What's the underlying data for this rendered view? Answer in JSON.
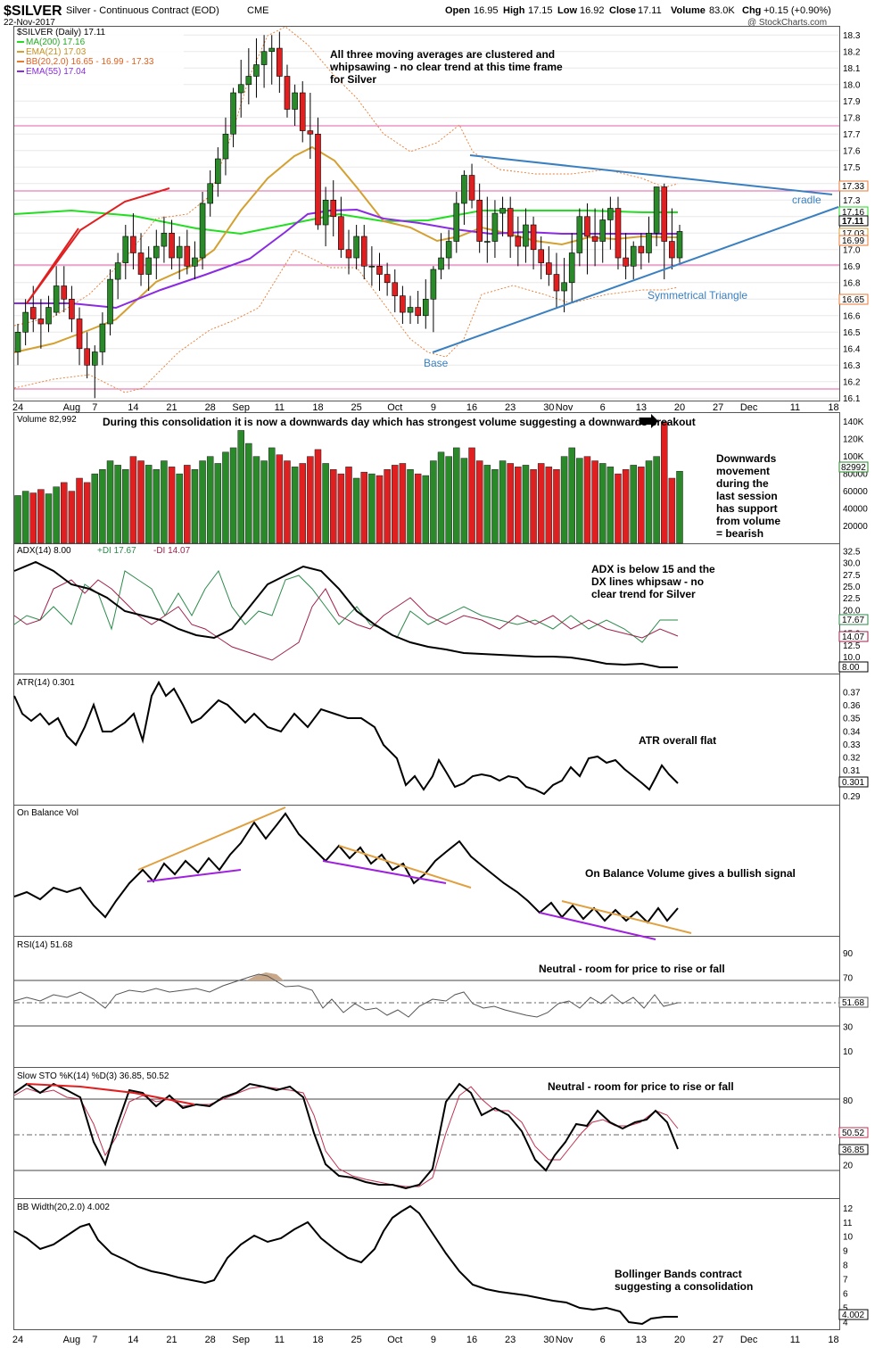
{
  "header": {
    "symbol": "$SILVER",
    "name": "Silver - Continuous Contract (EOD)",
    "exchange": "CME",
    "date": "22-Nov-2017",
    "open_label": "Open",
    "open": "16.95",
    "high_label": "High",
    "high": "17.15",
    "low_label": "Low",
    "low": "16.92",
    "close_label": "Close",
    "close": "17.11",
    "volume_label": "Volume",
    "volume": "83.0K",
    "chg_label": "Chg",
    "chg": "+0.15 (+0.90%)",
    "watermark": "@ StockCharts.com"
  },
  "colors": {
    "up": "#2a8a2a",
    "down": "#e02020",
    "ma200": "#22dd22",
    "ema21": "#d4a030",
    "bb": "#e87a30",
    "ema55": "#8a2be2",
    "trend": "#3a80c0",
    "pink": "#e040a0"
  },
  "x_axis": {
    "labels": [
      "24",
      "Aug",
      "7",
      "14",
      "21",
      "28",
      "Sep",
      "11",
      "18",
      "25",
      "Oct",
      "9",
      "16",
      "23",
      "30",
      "Nov",
      "6",
      "13",
      "20",
      "27",
      "Dec",
      "11",
      "18"
    ]
  },
  "price_panel": {
    "legend": [
      "$SILVER (Daily) 17.11",
      "MA(200) 17.16",
      "EMA(21) 17.03",
      "BB(20,2.0) 16.65 - 16.99 - 17.33",
      "EMA(55) 17.04"
    ],
    "y_ticks": [
      "18.3",
      "18.2",
      "18.1",
      "18.0",
      "17.9",
      "17.8",
      "17.7",
      "17.6",
      "17.5",
      "17.4",
      "17.3",
      "17.2",
      "17.1",
      "17.0",
      "16.9",
      "16.8",
      "16.7",
      "16.6",
      "16.5",
      "16.4",
      "16.3",
      "16.2",
      "16.1"
    ],
    "right_tags": [
      "17.33",
      "17.16",
      "17.11",
      "17.03",
      "16.99",
      "16.65"
    ],
    "annotations": {
      "moving_averages": "All three moving averages are clustered and whipsawing -  no clear trend at this time frame for Silver",
      "cradle": "cradle",
      "triangle": "Symmetrical Triangle",
      "base": "Base"
    }
  },
  "volume_panel": {
    "legend": "Volume 82,992",
    "y_ticks": [
      "140K",
      "120K",
      "100K",
      "80000",
      "60000",
      "40000",
      "20000"
    ],
    "last_tag": "82992",
    "annotation_top": "During this consolidation it is now a downwards day which has strongest volume suggesting a downwards breakout",
    "annotation_side": "Downwards movement during the last session has support from volume = bearish"
  },
  "adx_panel": {
    "legend_a": "ADX(14) 8.00",
    "legend_b": "+DI 17.67",
    "legend_c": "-DI 14.07",
    "y_ticks": [
      "32.5",
      "30.0",
      "27.5",
      "25.0",
      "22.5",
      "20.0",
      "17.5",
      "15.0",
      "12.5",
      "10.0",
      "7.5"
    ],
    "tags": [
      "17.67",
      "14.07",
      "8.00"
    ],
    "annotation": "ADX is below 15 and the DX lines whipsaw - no clear trend for Silver"
  },
  "atr_panel": {
    "legend": "ATR(14) 0.301",
    "y_ticks": [
      "0.37",
      "0.36",
      "0.35",
      "0.34",
      "0.33",
      "0.32",
      "0.31",
      "0.30",
      "0.29"
    ],
    "tag": "0.301",
    "annotation": "ATR overall flat"
  },
  "obv_panel": {
    "legend": "On Balance Vol",
    "annotation": "On Balance Volume gives a bullish signal"
  },
  "rsi_panel": {
    "legend": "RSI(14) 51.68",
    "y_ticks": [
      "90",
      "70",
      "50",
      "30",
      "10"
    ],
    "tag": "51.68",
    "annotation": "Neutral - room for price to rise or fall"
  },
  "sto_panel": {
    "legend": "Slow STO %K(14) %D(3) 36.85, 50.52",
    "y_ticks": [
      "80",
      "50",
      "20"
    ],
    "tags": [
      "50.52",
      "36.85"
    ],
    "annotation": "Neutral - room for price to rise or fall"
  },
  "bbw_panel": {
    "legend": "BB Width(20,2.0) 4.002",
    "y_ticks": [
      "12",
      "11",
      "10",
      "9",
      "8",
      "7",
      "6",
      "5",
      "4"
    ],
    "tag": "4.002",
    "annotation": "Bollinger Bands contract suggesting a consolidation"
  },
  "chart_data": {
    "type": "candlestick",
    "x": [
      "Jul-24",
      "Jul-25",
      "Jul-26",
      "Jul-27",
      "Jul-28",
      "Jul-31",
      "Aug-1",
      "Aug-2",
      "Aug-3",
      "Aug-4",
      "Aug-7",
      "Aug-8",
      "Aug-9",
      "Aug-10",
      "Aug-11",
      "Aug-14",
      "Aug-15",
      "Aug-16",
      "Aug-17",
      "Aug-18",
      "Aug-21",
      "Aug-22",
      "Aug-23",
      "Aug-24",
      "Aug-25",
      "Aug-28",
      "Aug-29",
      "Aug-30",
      "Aug-31",
      "Sep-1",
      "Sep-5",
      "Sep-6",
      "Sep-7",
      "Sep-8",
      "Sep-11",
      "Sep-12",
      "Sep-13",
      "Sep-14",
      "Sep-15",
      "Sep-18",
      "Sep-19",
      "Sep-20",
      "Sep-21",
      "Sep-22",
      "Sep-25",
      "Sep-26",
      "Sep-27",
      "Sep-28",
      "Sep-29",
      "Oct-2",
      "Oct-3",
      "Oct-4",
      "Oct-5",
      "Oct-6",
      "Oct-9",
      "Oct-10",
      "Oct-11",
      "Oct-12",
      "Oct-13",
      "Oct-16",
      "Oct-17",
      "Oct-18",
      "Oct-19",
      "Oct-20",
      "Oct-23",
      "Oct-24",
      "Oct-25",
      "Oct-26",
      "Oct-27",
      "Oct-30",
      "Oct-31",
      "Nov-1",
      "Nov-2",
      "Nov-3",
      "Nov-6",
      "Nov-7",
      "Nov-8",
      "Nov-9",
      "Nov-10",
      "Nov-13",
      "Nov-14",
      "Nov-15",
      "Nov-16",
      "Nov-17",
      "Nov-20",
      "Nov-21",
      "Nov-22"
    ],
    "open": [
      16.38,
      16.5,
      16.65,
      16.58,
      16.55,
      16.62,
      16.78,
      16.7,
      16.58,
      16.4,
      16.3,
      16.38,
      16.55,
      16.82,
      16.92,
      17.08,
      16.98,
      16.85,
      16.95,
      17.02,
      17.1,
      16.95,
      17.02,
      16.9,
      16.95,
      17.28,
      17.4,
      17.55,
      17.7,
      17.95,
      18.0,
      18.05,
      18.12,
      18.2,
      18.22,
      18.05,
      17.85,
      17.95,
      17.72,
      17.7,
      17.15,
      17.3,
      17.2,
      17.0,
      16.95,
      17.08,
      16.9,
      16.9,
      16.85,
      16.8,
      16.72,
      16.62,
      16.65,
      16.6,
      16.7,
      16.88,
      16.95,
      17.05,
      17.28,
      17.45,
      17.3,
      17.05,
      17.05,
      17.22,
      17.25,
      17.08,
      17.02,
      17.15,
      17.0,
      16.92,
      16.85,
      16.75,
      16.8,
      16.98,
      17.2,
      17.08,
      17.05,
      17.18,
      17.25,
      16.95,
      16.9,
      17.02,
      16.98,
      17.1,
      17.38,
      17.05,
      16.95
    ],
    "high": [
      16.55,
      16.7,
      16.78,
      16.7,
      16.72,
      16.9,
      16.9,
      16.78,
      16.65,
      16.5,
      16.42,
      16.62,
      16.88,
      16.98,
      17.15,
      17.22,
      17.1,
      17.02,
      17.12,
      17.2,
      17.18,
      17.08,
      17.12,
      17.05,
      17.35,
      17.48,
      17.62,
      17.8,
      17.98,
      18.15,
      18.22,
      18.28,
      18.3,
      18.3,
      18.32,
      18.12,
      18.0,
      18.02,
      17.95,
      17.8,
      17.38,
      17.42,
      17.32,
      17.12,
      17.15,
      17.15,
      17.02,
      16.98,
      16.92,
      16.88,
      16.78,
      16.72,
      16.75,
      16.82,
      16.9,
      17.1,
      17.12,
      17.35,
      17.48,
      17.52,
      17.4,
      17.32,
      17.3,
      17.32,
      17.32,
      17.2,
      17.25,
      17.2,
      17.08,
      17.02,
      16.98,
      16.95,
      17.1,
      17.25,
      17.28,
      17.25,
      17.25,
      17.32,
      17.32,
      17.1,
      17.05,
      17.1,
      17.2,
      17.38,
      17.4,
      17.25,
      17.15
    ],
    "low": [
      16.3,
      16.42,
      16.5,
      16.4,
      16.5,
      16.6,
      16.62,
      16.5,
      16.3,
      16.22,
      16.1,
      16.3,
      16.48,
      16.7,
      16.82,
      16.88,
      16.78,
      16.75,
      16.82,
      16.92,
      16.88,
      16.82,
      16.85,
      16.82,
      16.88,
      17.2,
      17.32,
      17.45,
      17.62,
      17.8,
      17.88,
      17.92,
      17.98,
      18.0,
      17.95,
      17.8,
      17.75,
      17.65,
      17.55,
      17.12,
      17.02,
      17.08,
      16.95,
      16.85,
      16.88,
      16.82,
      16.78,
      16.75,
      16.72,
      16.62,
      16.55,
      16.55,
      16.55,
      16.52,
      16.5,
      16.82,
      16.88,
      16.98,
      17.15,
      17.25,
      16.98,
      16.92,
      16.95,
      17.08,
      16.95,
      16.9,
      16.92,
      16.88,
      16.82,
      16.78,
      16.65,
      16.62,
      16.68,
      16.9,
      16.85,
      16.9,
      16.92,
      17.0,
      16.88,
      16.82,
      16.82,
      16.88,
      16.92,
      17.02,
      16.82,
      16.88,
      16.92
    ],
    "close": [
      16.5,
      16.62,
      16.58,
      16.55,
      16.65,
      16.78,
      16.7,
      16.58,
      16.4,
      16.3,
      16.38,
      16.55,
      16.82,
      16.92,
      17.08,
      16.98,
      16.85,
      16.95,
      17.02,
      17.1,
      16.95,
      17.02,
      16.9,
      16.95,
      17.28,
      17.4,
      17.55,
      17.7,
      17.95,
      18.0,
      18.05,
      18.12,
      18.2,
      18.22,
      18.05,
      17.85,
      17.95,
      17.72,
      17.7,
      17.15,
      17.3,
      17.2,
      17.0,
      16.95,
      17.08,
      16.9,
      16.9,
      16.85,
      16.8,
      16.72,
      16.62,
      16.65,
      16.6,
      16.7,
      16.88,
      16.95,
      17.05,
      17.28,
      17.45,
      17.3,
      17.05,
      17.05,
      17.22,
      17.25,
      17.08,
      17.02,
      17.15,
      17.0,
      16.92,
      16.85,
      16.75,
      16.8,
      16.98,
      17.2,
      17.08,
      17.05,
      17.18,
      17.25,
      16.95,
      16.9,
      17.02,
      16.98,
      17.1,
      17.38,
      17.05,
      16.95,
      17.11
    ],
    "volume": [
      55,
      60,
      58,
      62,
      57,
      65,
      70,
      60,
      75,
      70,
      80,
      85,
      95,
      90,
      85,
      100,
      95,
      90,
      85,
      95,
      88,
      80,
      90,
      85,
      95,
      100,
      92,
      105,
      110,
      130,
      115,
      100,
      95,
      110,
      102,
      95,
      88,
      92,
      100,
      108,
      92,
      85,
      80,
      88,
      75,
      82,
      80,
      78,
      85,
      90,
      92,
      85,
      80,
      78,
      95,
      105,
      100,
      110,
      98,
      110,
      95,
      90,
      85,
      95,
      92,
      88,
      90,
      85,
      92,
      88,
      85,
      100,
      110,
      98,
      100,
      95,
      92,
      88,
      80,
      85,
      90,
      88,
      95,
      100,
      140,
      75,
      83
    ],
    "ylim": [
      16.08,
      18.35
    ],
    "volume_ylim": [
      0,
      150
    ]
  }
}
